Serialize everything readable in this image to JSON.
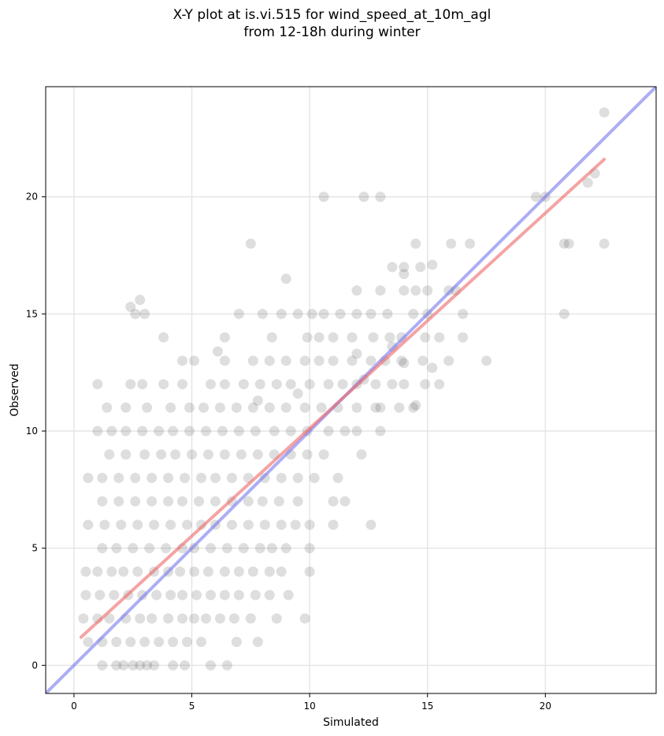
{
  "chart_data": {
    "type": "scatter",
    "title": [
      "X-Y plot at is.vi.515 for wind_speed_at_10m_agl",
      "from 12-18h during winter"
    ],
    "xlabel": "Simulated",
    "ylabel": "Observed",
    "xlim": [
      -1.2,
      24.7
    ],
    "ylim": [
      -1.2,
      24.7
    ],
    "xticks": [
      0,
      5,
      10,
      15,
      20
    ],
    "yticks": [
      0,
      5,
      10,
      15,
      20
    ],
    "grid": true,
    "legend": "none",
    "colors": {
      "points": "#333333",
      "identity_line": "#7777ee",
      "fit_line": "#ee6666"
    },
    "series": [
      {
        "kind": "points",
        "x": [
          1.2,
          1.8,
          2.1,
          2.5,
          2.8,
          3.1,
          3.4,
          4.2,
          4.7,
          5.8,
          6.5,
          0.6,
          1.2,
          1.8,
          2.4,
          3.0,
          3.6,
          4.2,
          4.8,
          5.4,
          6.9,
          7.8,
          0.4,
          1.0,
          1.5,
          2.2,
          2.8,
          3.3,
          4.0,
          4.6,
          5.1,
          5.6,
          6.2,
          6.8,
          7.5,
          8.6,
          9.8,
          0.5,
          1.1,
          1.7,
          2.3,
          2.9,
          3.5,
          4.1,
          4.6,
          5.2,
          5.8,
          6.4,
          7.0,
          7.7,
          8.3,
          9.1,
          0.5,
          1.0,
          1.6,
          2.1,
          2.7,
          3.4,
          4.0,
          4.5,
          5.1,
          5.7,
          6.4,
          7.0,
          7.6,
          8.3,
          8.8,
          10.0,
          1.2,
          1.8,
          2.5,
          3.2,
          3.9,
          4.6,
          5.1,
          5.8,
          6.5,
          7.2,
          7.9,
          8.4,
          9.0,
          10.0,
          0.6,
          1.3,
          2.0,
          2.7,
          3.4,
          4.1,
          4.8,
          5.4,
          6.0,
          6.7,
          7.4,
          8.1,
          8.8,
          9.4,
          10.0,
          11.0,
          12.6,
          1.2,
          1.9,
          2.6,
          3.3,
          4.0,
          4.6,
          5.3,
          6.0,
          6.7,
          7.4,
          8.0,
          8.7,
          9.5,
          11.0,
          11.5,
          0.6,
          1.2,
          1.9,
          2.6,
          3.3,
          4.0,
          4.7,
          5.4,
          6.0,
          6.7,
          7.4,
          8.1,
          8.8,
          9.5,
          10.2,
          11.2,
          1.5,
          2.2,
          3.0,
          3.7,
          4.3,
          5.0,
          5.7,
          6.4,
          7.1,
          7.8,
          8.5,
          9.2,
          9.9,
          10.6,
          12.2,
          1.0,
          1.6,
          2.2,
          2.9,
          3.6,
          4.2,
          4.9,
          5.6,
          6.3,
          7.0,
          7.7,
          8.5,
          9.2,
          9.9,
          10.8,
          11.5,
          12.0,
          13.0,
          1.4,
          2.2,
          3.1,
          4.1,
          4.9,
          5.5,
          6.2,
          6.9,
          7.6,
          8.3,
          9.0,
          9.8,
          10.5,
          11.2,
          12.0,
          12.8,
          13.0,
          13.8,
          14.4,
          1.0,
          2.4,
          2.9,
          3.8,
          4.6,
          5.8,
          6.4,
          7.2,
          7.9,
          8.6,
          9.2,
          10.0,
          10.8,
          11.4,
          12.0,
          12.8,
          13.5,
          14.0,
          14.9,
          15.5,
          4.6,
          5.1,
          6.4,
          7.6,
          8.3,
          9.0,
          9.8,
          10.4,
          11.0,
          11.8,
          12.6,
          13.2,
          13.9,
          14.8,
          15.9,
          17.5,
          3.8,
          6.4,
          8.4,
          9.9,
          10.4,
          11.0,
          11.8,
          12.7,
          13.4,
          13.9,
          14.9,
          15.5,
          16.5,
          2.6,
          3.0,
          7.0,
          8.0,
          8.8,
          9.5,
          10.1,
          10.6,
          11.3,
          12.0,
          12.6,
          13.3,
          14.4,
          15.0,
          16.5,
          20.8,
          12.0,
          13.0,
          14.0,
          14.5,
          15.0,
          15.9,
          16.2,
          13.5,
          14.0,
          14.7,
          7.5,
          14.5,
          16.0,
          16.8,
          20.8,
          21.0,
          22.5,
          7.8,
          9.5,
          12.0,
          12.3,
          13.5,
          14.0,
          14.5,
          15.2,
          10.6,
          12.3,
          13.0,
          19.6,
          20.0,
          2.4,
          2.8,
          6.1,
          9.0,
          14.0,
          15.2,
          21.8,
          22.1,
          22.5
        ],
        "y": [
          0,
          0,
          0,
          0,
          0,
          0,
          0,
          0,
          0,
          0,
          0,
          1,
          1,
          1,
          1,
          1,
          1,
          1,
          1,
          1,
          1,
          1,
          2,
          2,
          2,
          2,
          2,
          2,
          2,
          2,
          2,
          2,
          2,
          2,
          2,
          2,
          2,
          3,
          3,
          3,
          3,
          3,
          3,
          3,
          3,
          3,
          3,
          3,
          3,
          3,
          3,
          3,
          4,
          4,
          4,
          4,
          4,
          4,
          4,
          4,
          4,
          4,
          4,
          4,
          4,
          4,
          4,
          4,
          5,
          5,
          5,
          5,
          5,
          5,
          5,
          5,
          5,
          5,
          5,
          5,
          5,
          5,
          6,
          6,
          6,
          6,
          6,
          6,
          6,
          6,
          6,
          6,
          6,
          6,
          6,
          6,
          6,
          6,
          6,
          7,
          7,
          7,
          7,
          7,
          7,
          7,
          7,
          7,
          7,
          7,
          7,
          7,
          7,
          7,
          8,
          8,
          8,
          8,
          8,
          8,
          8,
          8,
          8,
          8,
          8,
          8,
          8,
          8,
          8,
          8,
          9,
          9,
          9,
          9,
          9,
          9,
          9,
          9,
          9,
          9,
          9,
          9,
          9,
          9,
          9,
          10,
          10,
          10,
          10,
          10,
          10,
          10,
          10,
          10,
          10,
          10,
          10,
          10,
          10,
          10,
          10,
          10,
          10,
          11,
          11,
          11,
          11,
          11,
          11,
          11,
          11,
          11,
          11,
          11,
          11,
          11,
          11,
          11,
          11,
          11,
          11,
          11,
          12,
          12,
          12,
          12,
          12,
          12,
          12,
          12,
          12,
          12,
          12,
          12,
          12,
          12,
          12,
          12,
          12,
          12,
          12,
          12,
          13,
          13,
          13,
          13,
          13,
          13,
          13,
          13,
          13,
          13,
          13,
          13,
          13,
          13,
          13,
          13,
          14,
          14,
          14,
          14,
          14,
          14,
          14,
          14,
          14,
          14,
          14,
          14,
          14,
          15,
          15,
          15,
          15,
          15,
          15,
          15,
          15,
          15,
          15,
          15,
          15,
          15,
          15,
          15,
          15,
          16,
          16,
          16,
          16,
          16,
          16,
          16,
          17,
          17,
          17,
          18,
          18,
          18,
          18,
          18,
          18,
          18,
          11.3,
          11.6,
          13.3,
          12.2,
          13.6,
          12.9,
          11.1,
          12.7,
          20,
          20,
          20,
          20,
          20,
          15.3,
          15.6,
          13.4,
          16.5,
          16.7,
          17.1,
          20.6,
          21.0,
          23.6
        ]
      },
      {
        "kind": "line",
        "name": "identity",
        "x": [
          -1.2,
          24.7
        ],
        "y": [
          -1.2,
          24.7
        ]
      },
      {
        "kind": "line",
        "name": "fit",
        "x": [
          0.3,
          22.5
        ],
        "y": [
          1.2,
          21.6
        ]
      }
    ]
  }
}
